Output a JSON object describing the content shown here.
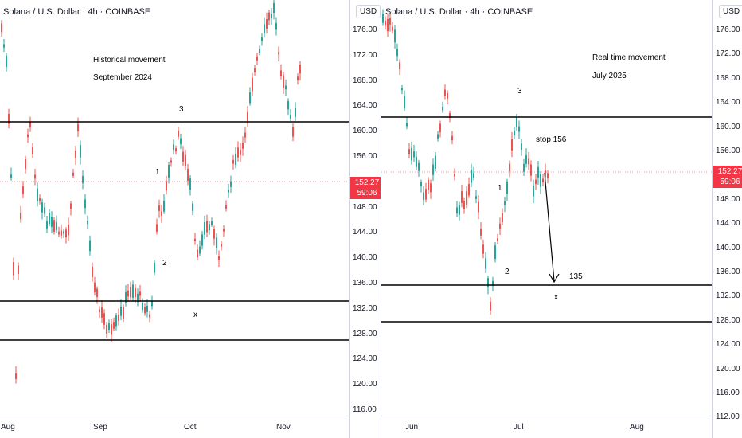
{
  "left": {
    "title": "Solana / U.S. Dollar · 4h · COINBASE",
    "currency_button": "USD",
    "price_labels": [
      "176.00",
      "172.00",
      "168.00",
      "164.00",
      "160.00",
      "156.00",
      "152.00",
      "148.00",
      "144.00",
      "140.00",
      "136.00",
      "132.00",
      "128.00",
      "124.00",
      "120.00",
      "116.00"
    ],
    "price_tag": {
      "price": "152.27",
      "countdown": "59:06"
    },
    "time_labels": [
      "Aug",
      "Sep",
      "Oct",
      "Nov"
    ],
    "annotation_line1": "Historical movement",
    "annotation_line2": "September 2024",
    "wave_labels": {
      "w1": "1",
      "w2": "2",
      "w3": "3",
      "wx": "x"
    }
  },
  "right": {
    "title": "Solana / U.S. Dollar · 4h · COINBASE",
    "currency_button": "USD",
    "price_labels": [
      "176.00",
      "172.00",
      "168.00",
      "164.00",
      "160.00",
      "156.00",
      "152.00",
      "148.00",
      "144.00",
      "140.00",
      "136.00",
      "132.00",
      "128.00",
      "124.00",
      "120.00",
      "116.00",
      "112.00"
    ],
    "price_tag": {
      "price": "152.27",
      "countdown": "59:06"
    },
    "time_labels": [
      "Jun",
      "Jul",
      "Aug"
    ],
    "annotation_line1": "Real time movement",
    "annotation_line2": "July 2025",
    "stop_label": "stop 156",
    "target_label": "135",
    "wave_labels": {
      "w1": "1",
      "w2": "2",
      "w3": "3",
      "wx": "x"
    }
  },
  "colors": {
    "up": "#26a69a",
    "down": "#ef5350",
    "price_tag": "#f23645",
    "level_line": "#000000",
    "axis_border": "#d1d4dc"
  }
}
